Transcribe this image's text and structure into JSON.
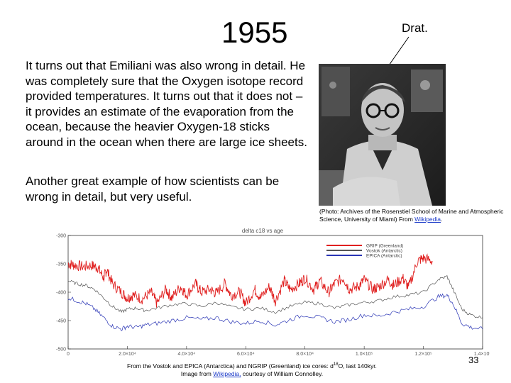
{
  "slide": {
    "title": "1955",
    "callout_label": "Drat.",
    "paragraph1": "It turns out that Emiliani was also wrong in detail.  He was completely sure that the Oxygen isotope record provided temperatures.  It turns out that it does not – it provides an estimate of the evaporation from the ocean, because the heavier Oxygen-18 sticks around in the ocean when there are large ice sheets.",
    "paragraph2": "Another great example of how scientists can be wrong in detail, but very useful.",
    "photo_caption": "(Photo: Archives of the Rosenstiel School of Marine and Atmospheric Science, University of Miami)  From",
    "photo_caption_link": "Wikipedia",
    "photo_caption_end": ".",
    "credit_line1_a": "From the Vostok and EPICA (Antarctica) and NGRIP (Greenland) ice cores: d",
    "credit_sup": "18",
    "credit_line1_b": "O, last 140kyr.",
    "credit_line2_a": "Image from",
    "credit_link": "Wikipedia,",
    "credit_line2_b": "courtesy of William Connolley.",
    "slide_number": "33",
    "colors": {
      "grip": "#e02020",
      "vostok": "#555555",
      "epica": "#2a35b5",
      "link": "#1a39c8"
    }
  },
  "chart_data": {
    "type": "line",
    "title": "delta  c18  vs  age",
    "ylim": [
      -500,
      -300
    ],
    "xlim": [
      0,
      140000
    ],
    "yticks": [
      "-300",
      "-350",
      "-400",
      "-450",
      "-500"
    ],
    "xticks": [
      "0",
      "2.0×10⁴",
      "4.0×10⁴",
      "6.0×10⁴",
      "8.0×10⁴",
      "1.0×10⁵",
      "1.2×10⁵",
      "1.4×10⁵"
    ],
    "xtick_values": [
      0,
      20000,
      40000,
      60000,
      80000,
      100000,
      120000,
      140000
    ],
    "ytick_values": [
      -300,
      -350,
      -400,
      -450,
      -500
    ],
    "legend_position": "top-right",
    "series": [
      {
        "name": "GRIP (Greenland)",
        "color": "#e02020",
        "x": [
          0,
          2000,
          5000,
          8000,
          10000,
          12000,
          13000,
          15000,
          18000,
          20000,
          22000,
          25000,
          28000,
          30000,
          33000,
          35000,
          38000,
          40000,
          43000,
          45000,
          48000,
          50000,
          53000,
          55000,
          58000,
          60000,
          63000,
          65000,
          68000,
          70000,
          73000,
          75000,
          78000,
          80000,
          83000,
          85000,
          88000,
          90000,
          93000,
          95000,
          98000,
          100000,
          103000,
          105000,
          108000,
          110000,
          113000,
          115000,
          118000,
          120000,
          123000
        ],
        "y": [
          -350,
          -352,
          -355,
          -353,
          -356,
          -375,
          -360,
          -385,
          -400,
          -410,
          -405,
          -412,
          -400,
          -420,
          -395,
          -410,
          -390,
          -405,
          -385,
          -400,
          -395,
          -402,
          -385,
          -405,
          -400,
          -420,
          -395,
          -410,
          -390,
          -415,
          -380,
          -395,
          -385,
          -375,
          -395,
          -380,
          -400,
          -385,
          -375,
          -395,
          -390,
          -378,
          -395,
          -390,
          -378,
          -388,
          -375,
          -392,
          -345,
          -340,
          -345
        ]
      },
      {
        "name": "Vostok (Antarctic)",
        "color": "#555555",
        "x": [
          0,
          3000,
          6000,
          9000,
          12000,
          15000,
          18000,
          20000,
          23000,
          26000,
          30000,
          35000,
          40000,
          45000,
          50000,
          55000,
          60000,
          65000,
          70000,
          75000,
          80000,
          85000,
          90000,
          95000,
          100000,
          105000,
          110000,
          115000,
          120000,
          125000,
          128000,
          130000,
          133000,
          136000,
          140000
        ],
        "y": [
          -380,
          -385,
          -388,
          -395,
          -410,
          -425,
          -435,
          -430,
          -428,
          -432,
          -428,
          -422,
          -420,
          -425,
          -418,
          -426,
          -430,
          -428,
          -435,
          -425,
          -418,
          -420,
          -428,
          -422,
          -418,
          -415,
          -408,
          -405,
          -400,
          -378,
          -372,
          -395,
          -430,
          -440,
          -445
        ]
      },
      {
        "name": "EPICA (Antarctic)",
        "color": "#2a35b5",
        "x": [
          0,
          3000,
          6000,
          9000,
          12000,
          15000,
          18000,
          20000,
          23000,
          26000,
          30000,
          35000,
          40000,
          45000,
          50000,
          55000,
          60000,
          65000,
          70000,
          75000,
          80000,
          85000,
          90000,
          95000,
          100000,
          105000,
          110000,
          115000,
          120000,
          125000,
          128000,
          130000,
          133000,
          136000,
          140000
        ],
        "y": [
          -410,
          -415,
          -420,
          -430,
          -445,
          -460,
          -465,
          -460,
          -462,
          -458,
          -455,
          -450,
          -445,
          -448,
          -445,
          -452,
          -455,
          -450,
          -458,
          -448,
          -440,
          -445,
          -452,
          -448,
          -440,
          -442,
          -435,
          -430,
          -425,
          -408,
          -405,
          -420,
          -455,
          -462,
          -465
        ]
      }
    ]
  }
}
